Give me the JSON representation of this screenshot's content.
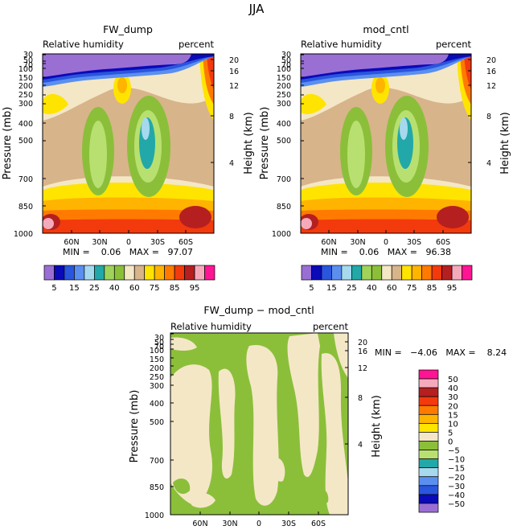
{
  "figure_title": "JJA",
  "palette_abs": [
    "#9a6fd4",
    "#0a0ab8",
    "#2a55dd",
    "#5a8ff0",
    "#a6d9ee",
    "#22a8a8",
    "#9fd35a",
    "#8bbf3a",
    "#f4e7c6",
    "#d8b48a",
    "#ffe400",
    "#ffb400",
    "#ff7a00",
    "#f23a0c",
    "#b51f1f",
    "#f5aabb",
    "#ff1493"
  ],
  "palette_diff": [
    "#9a6fd4",
    "#0a0ab8",
    "#2a55dd",
    "#5a8ff0",
    "#a6d9ee",
    "#22a8a8",
    "#b8e070",
    "#8bbf3a",
    "#f4e7c6",
    "#ffe400",
    "#ffb400",
    "#ff7a00",
    "#f23a0c",
    "#b51f1f",
    "#f5aabb",
    "#ff1493"
  ],
  "chart_data": [
    {
      "type": "heatmap",
      "title": "FW_dump",
      "left_label": "Relative humidity",
      "right_label": "percent",
      "xlabel": "",
      "ylabel": "Pressure (mb)",
      "ylabel2": "Height (km)",
      "x_ticks": [
        "60N",
        "30N",
        "0",
        "30S",
        "60S"
      ],
      "x_tick_values": [
        60,
        30,
        0,
        -30,
        -60
      ],
      "xlim": [
        90,
        -90
      ],
      "y_ticks": [
        "30",
        "50",
        "70",
        "100",
        "150",
        "200",
        "250",
        "300",
        "400",
        "500",
        "700",
        "850",
        "1000"
      ],
      "y_tick_values": [
        30,
        50,
        70,
        100,
        150,
        200,
        250,
        300,
        400,
        500,
        700,
        850,
        1000
      ],
      "ylim": [
        1000,
        30
      ],
      "height_ticks": [
        "20",
        "16",
        "12",
        "8",
        "4"
      ],
      "height_tick_values": [
        20,
        16,
        12,
        8,
        4
      ],
      "stats": "MIN =    0.06   MAX =   97.07",
      "min": 0.06,
      "max": 97.07
    },
    {
      "type": "heatmap",
      "title": "mod_cntl",
      "left_label": "Relative humidity",
      "right_label": "percent",
      "xlabel": "",
      "ylabel": "Pressure (mb)",
      "ylabel2": "Height (km)",
      "x_ticks": [
        "60N",
        "30N",
        "0",
        "30S",
        "60S"
      ],
      "x_tick_values": [
        60,
        30,
        0,
        -30,
        -60
      ],
      "xlim": [
        90,
        -90
      ],
      "y_ticks": [
        "30",
        "50",
        "70",
        "100",
        "150",
        "200",
        "250",
        "300",
        "400",
        "500",
        "700",
        "850",
        "1000"
      ],
      "y_tick_values": [
        30,
        50,
        70,
        100,
        150,
        200,
        250,
        300,
        400,
        500,
        700,
        850,
        1000
      ],
      "ylim": [
        1000,
        30
      ],
      "height_ticks": [
        "20",
        "16",
        "12",
        "8",
        "4"
      ],
      "height_tick_values": [
        20,
        16,
        12,
        8,
        4
      ],
      "stats": "MIN =    0.06   MAX =   96.38",
      "min": 0.06,
      "max": 96.38
    },
    {
      "type": "heatmap",
      "title": "FW_dump − mod_cntl",
      "left_label": "Relative humidity",
      "right_label": "percent",
      "xlabel": "",
      "ylabel": "Pressure (mb)",
      "ylabel2": "Height (km)",
      "x_ticks": [
        "60N",
        "30N",
        "0",
        "30S",
        "60S"
      ],
      "x_tick_values": [
        60,
        30,
        0,
        -30,
        -60
      ],
      "xlim": [
        90,
        -90
      ],
      "y_ticks": [
        "30",
        "50",
        "70",
        "100",
        "150",
        "200",
        "250",
        "300",
        "400",
        "500",
        "700",
        "850",
        "1000"
      ],
      "y_tick_values": [
        30,
        50,
        70,
        100,
        150,
        200,
        250,
        300,
        400,
        500,
        700,
        850,
        1000
      ],
      "ylim": [
        1000,
        30
      ],
      "height_ticks": [
        "20",
        "16",
        "12",
        "8",
        "4"
      ],
      "height_tick_values": [
        20,
        16,
        12,
        8,
        4
      ],
      "stats": "MIN =   −4.06   MAX =    8.24",
      "min": -4.06,
      "max": 8.24
    }
  ],
  "colorbar_abs": {
    "labels": [
      "5",
      "15",
      "25",
      "40",
      "60",
      "75",
      "85",
      "95"
    ],
    "levels": [
      5,
      10,
      15,
      20,
      25,
      30,
      40,
      50,
      60,
      70,
      75,
      80,
      85,
      90,
      95
    ]
  },
  "colorbar_diff": {
    "labels": [
      "50",
      "40",
      "30",
      "20",
      "15",
      "10",
      "5",
      "0",
      "−5",
      "−10",
      "−15",
      "−20",
      "−30",
      "−40",
      "−50"
    ],
    "levels": [
      50,
      40,
      30,
      20,
      15,
      10,
      5,
      0,
      -5,
      -10,
      -15,
      -20,
      -30,
      -40,
      -50
    ]
  }
}
